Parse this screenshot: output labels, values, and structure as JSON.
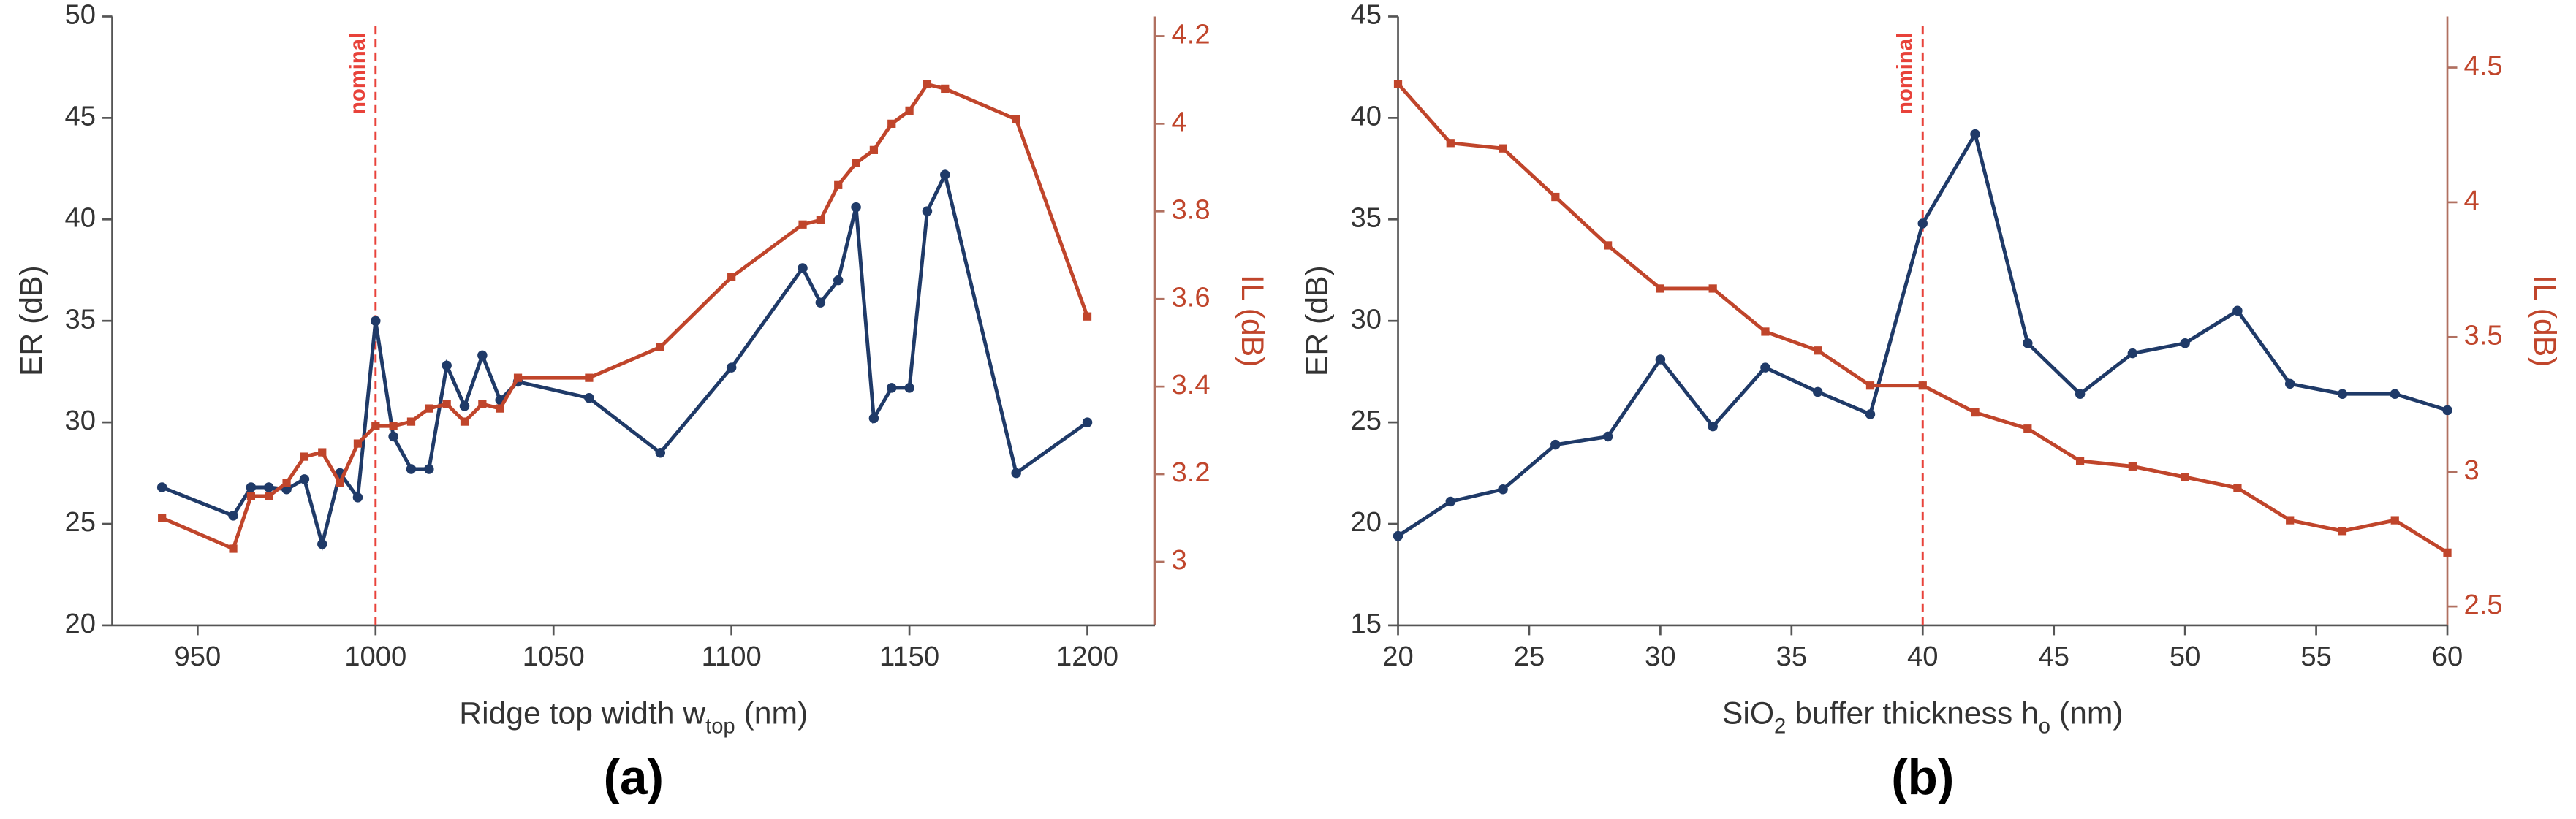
{
  "chart_data": [
    {
      "type": "line",
      "panel_label": "(a)",
      "xlabel": [
        {
          "text": "Ridge top width w"
        },
        {
          "text": "top",
          "sub": true
        },
        {
          "text": " (nm)"
        }
      ],
      "ylabel": "ER (dB)",
      "y2label": "IL (dB)",
      "xlim": [
        926,
        1219
      ],
      "xticks": [
        950,
        1000,
        1050,
        1100,
        1150,
        1200
      ],
      "ylim": [
        20,
        50
      ],
      "yticks": [
        20,
        25,
        30,
        35,
        40,
        45,
        50
      ],
      "y2lim": [
        2.855,
        4.245
      ],
      "y2ticks": [
        3,
        3.2,
        3.4,
        3.6,
        3.8,
        4,
        4.2
      ],
      "annotation": {
        "text": "nominal",
        "x": 1000,
        "color": "#e8423a"
      },
      "x": [
        940,
        960,
        965,
        970,
        975,
        980,
        985,
        990,
        995,
        1000,
        1005,
        1010,
        1015,
        1020,
        1025,
        1030,
        1035,
        1040,
        1060,
        1080,
        1100,
        1120,
        1125,
        1130,
        1135,
        1140,
        1145,
        1150,
        1155,
        1160,
        1180,
        1200
      ],
      "series": [
        {
          "color": "#1f3a68",
          "marker": "circle",
          "axis": "y",
          "values": [
            26.8,
            25.4,
            26.8,
            26.8,
            26.7,
            27.2,
            24.0,
            27.5,
            26.3,
            35.0,
            29.3,
            27.7,
            27.7,
            32.8,
            30.8,
            33.3,
            31.1,
            32.0,
            31.2,
            28.5,
            32.7,
            37.6,
            35.9,
            37.0,
            40.6,
            30.2,
            31.7,
            31.7,
            40.4,
            42.2,
            27.5,
            30.0
          ]
        },
        {
          "color": "#c0452b",
          "marker": "square",
          "axis": "y2",
          "values": [
            3.1,
            3.03,
            3.15,
            3.15,
            3.18,
            3.24,
            3.25,
            3.18,
            3.27,
            3.31,
            3.31,
            3.32,
            3.35,
            3.36,
            3.32,
            3.36,
            3.35,
            3.42,
            3.42,
            3.49,
            3.65,
            3.77,
            3.78,
            3.86,
            3.91,
            3.94,
            4.0,
            4.03,
            4.09,
            4.08,
            4.01,
            3.56
          ]
        }
      ]
    },
    {
      "type": "line",
      "panel_label": "(b)",
      "xlabel": [
        {
          "text": "SiO"
        },
        {
          "text": "2",
          "sub": true
        },
        {
          "text": " buffer thickness h"
        },
        {
          "text": "o",
          "sub": true
        },
        {
          "text": " (nm)"
        }
      ],
      "ylabel": "ER (dB)",
      "y2label": "IL (dB)",
      "xlim": [
        20,
        60
      ],
      "xticks": [
        20,
        25,
        30,
        35,
        40,
        45,
        50,
        55,
        60
      ],
      "ylim": [
        15,
        45
      ],
      "yticks": [
        15,
        20,
        25,
        30,
        35,
        40,
        45
      ],
      "y2lim": [
        2.43,
        4.69
      ],
      "y2ticks": [
        2.5,
        3,
        3.5,
        4,
        4.5
      ],
      "annotation": {
        "text": "nominal",
        "x": 40,
        "color": "#e8423a"
      },
      "x": [
        20,
        22,
        24,
        26,
        28,
        30,
        32,
        34,
        36,
        38,
        40,
        42,
        44,
        46,
        48,
        50,
        52,
        54,
        56,
        58,
        60
      ],
      "series": [
        {
          "color": "#1f3a68",
          "marker": "circle",
          "axis": "y",
          "values": [
            19.4,
            21.1,
            21.7,
            23.9,
            24.3,
            28.1,
            24.8,
            27.7,
            26.5,
            25.4,
            34.8,
            39.2,
            28.9,
            26.4,
            28.4,
            28.9,
            30.5,
            26.9,
            26.4,
            26.4,
            25.6
          ]
        },
        {
          "color": "#c0452b",
          "marker": "square",
          "axis": "y2",
          "values": [
            4.44,
            4.22,
            4.2,
            4.02,
            3.84,
            3.68,
            3.68,
            3.52,
            3.45,
            3.32,
            3.32,
            3.22,
            3.16,
            3.04,
            3.02,
            2.98,
            2.94,
            2.82,
            2.78,
            2.82,
            2.7
          ]
        }
      ]
    }
  ]
}
